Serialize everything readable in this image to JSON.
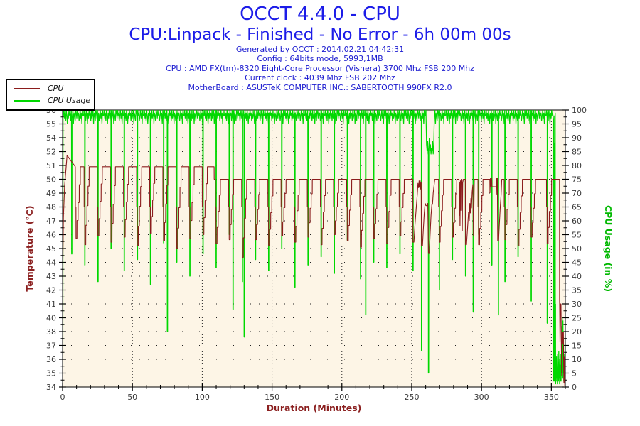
{
  "header": {
    "title": "OCCT 4.4.0 - CPU",
    "subtitle": "CPU:Linpack - Finished - No Error - 6h 00m 00s",
    "info_lines": [
      "Generated by OCCT : 2014.02.21 04:42:31",
      "Config : 64bits mode, 5993,1MB",
      "CPU : AMD FX(tm)-8320 Eight-Core Processor (Vishera) 3700 Mhz FSB 200 Mhz",
      "Current clock : 4039 Mhz FSB 202 Mhz",
      "MotherBoard : ASUSTeK COMPUTER INC.: SABERTOOTH 990FX R2.0"
    ]
  },
  "legend": {
    "items": [
      {
        "label": "CPU",
        "color": "#8b1c1c"
      },
      {
        "label": "CPU Usage",
        "color": "#00d800"
      }
    ]
  },
  "chart_data": {
    "type": "line",
    "title": "OCCT 4.4.0 - CPU",
    "plot_bg": "#fdf5e6",
    "x_axis": {
      "label": "Duration (Minutes)",
      "min": 0,
      "max": 360,
      "major_ticks": [
        0,
        50,
        100,
        150,
        200,
        250,
        300,
        350
      ],
      "minor_step": 10
    },
    "y_left": {
      "label": "Temperature (°C)",
      "min": 34,
      "max": 56,
      "color": "#8b2020",
      "tick_labels_top_to_bottom": [
        "56",
        "55",
        "54",
        "52",
        "51",
        "50",
        "49",
        "48",
        "47",
        "46",
        "45",
        "44",
        "43",
        "42",
        "41",
        "40",
        "38",
        "37",
        "36",
        "35",
        "34"
      ]
    },
    "y_right": {
      "label": "CPU Usage (in %)",
      "min": 0,
      "max": 100,
      "color": "#00b800",
      "tick_labels_top_to_bottom": [
        "100",
        "95",
        "90",
        "85",
        "80",
        "75",
        "70",
        "65",
        "60",
        "55",
        "50",
        "45",
        "40",
        "35",
        "30",
        "25",
        "20",
        "15",
        "10",
        "5",
        "0"
      ]
    },
    "grid": {
      "h_dash": "1 11",
      "v_dash": "1 3",
      "color": "#222222"
    },
    "temperature": {
      "name": "CPU",
      "color": "#8b1c1c",
      "unit": "°C",
      "start": [
        [
          0,
          36.2
        ],
        [
          0.1,
          43.0
        ],
        [
          0.6,
          47.5
        ],
        [
          1.5,
          50.0
        ],
        [
          2.5,
          51.4
        ],
        [
          3.2,
          52.4
        ]
      ],
      "baseline_segments": [
        [
          0,
          8.7,
          52.4
        ],
        [
          8.7,
          108.5,
          51.5
        ],
        [
          108.5,
          360,
          50.5
        ]
      ],
      "baseline_steps": [
        [
          108.5,
          51.5,
          50.5
        ]
      ],
      "predip_level": 48.3,
      "cycles": [
        [
          9.6,
          45.8
        ],
        [
          15.9,
          45.3
        ],
        [
          25.3,
          46.0
        ],
        [
          34.7,
          45.5
        ],
        [
          44.1,
          45.9
        ],
        [
          53.5,
          45.2
        ],
        [
          62.9,
          46.2
        ],
        [
          72.3,
          45.6
        ],
        [
          81.7,
          45.0
        ],
        [
          91.1,
          45.8
        ],
        [
          100.5,
          46.1
        ],
        [
          109.9,
          45.4
        ],
        [
          119.3,
          45.7
        ],
        [
          128.7,
          44.3
        ],
        [
          138.1,
          45.7
        ],
        [
          147.5,
          45.2
        ],
        [
          156.9,
          46.0
        ],
        [
          166.3,
          45.5
        ],
        [
          175.7,
          45.9
        ],
        [
          185.1,
          45.3
        ],
        [
          194.5,
          46.1
        ],
        [
          203.9,
          45.6
        ],
        [
          213.3,
          45.1
        ],
        [
          222.7,
          45.8
        ],
        [
          232.1,
          45.4
        ],
        [
          241.5,
          46.0
        ],
        [
          269.7,
          45.5
        ],
        [
          279.1,
          45.9
        ],
        [
          297.9,
          45.3
        ],
        [
          316.7,
          45.7
        ],
        [
          326.1,
          45.2
        ],
        [
          335.5,
          45.9
        ],
        [
          347.0,
          45.4
        ]
      ],
      "specials": [
        [
          [
            250.8,
            50.5
          ],
          [
            250.9,
            45.5
          ],
          [
            251.6,
            45.5
          ],
          [
            252.4,
            47.0
          ],
          [
            253.2,
            48.2
          ],
          [
            254.0,
            49.3
          ],
          [
            254.5,
            50.2
          ],
          [
            255.0,
            49.8
          ],
          [
            255.3,
            50.4
          ],
          [
            255.6,
            49.9
          ],
          [
            256.0,
            50.4
          ],
          [
            256.4,
            49.7
          ],
          [
            256.8,
            50.3
          ],
          [
            257.0,
            45.2
          ],
          [
            257.7,
            45.2
          ],
          [
            258.3,
            46.5
          ],
          [
            259.0,
            47.8
          ],
          [
            259.6,
            48.6
          ],
          [
            260.2,
            48.4
          ],
          [
            261.0,
            48.4
          ],
          [
            261.5,
            48.6
          ],
          [
            262.0,
            44.6
          ],
          [
            262.6,
            44.6
          ],
          [
            263.2,
            46.2
          ],
          [
            263.8,
            47.6
          ],
          [
            264.4,
            48.5
          ],
          [
            264.9,
            48.5
          ],
          [
            265.4,
            49.4
          ],
          [
            266.0,
            50.0
          ],
          [
            266.5,
            50.5
          ]
        ],
        [
          [
            283.9,
            50.5
          ],
          [
            284.1,
            47.6
          ],
          [
            284.3,
            50.3
          ],
          [
            284.6,
            46.8
          ],
          [
            284.9,
            50.4
          ],
          [
            285.2,
            48.0
          ],
          [
            285.4,
            50.5
          ],
          [
            286.0,
            50.5
          ],
          [
            286.2,
            46.4
          ],
          [
            286.5,
            50.2
          ],
          [
            287.0,
            50.5
          ],
          [
            288.4,
            50.5
          ],
          [
            288.5,
            45.3
          ],
          [
            289.2,
            45.3
          ],
          [
            290.0,
            46.6
          ],
          [
            290.7,
            47.9
          ],
          [
            291.2,
            47.2
          ],
          [
            291.6,
            48.6
          ],
          [
            292.0,
            47.8
          ],
          [
            292.4,
            49.0
          ],
          [
            292.8,
            48.2
          ],
          [
            293.3,
            49.5
          ],
          [
            293.8,
            50.1
          ],
          [
            294.2,
            46.0
          ],
          [
            294.5,
            48.0
          ],
          [
            294.8,
            50.5
          ]
        ],
        [
          [
            305.9,
            50.5
          ],
          [
            306.0,
            49.4
          ],
          [
            306.4,
            50.6
          ],
          [
            306.8,
            49.9
          ],
          [
            307.2,
            50.6
          ],
          [
            307.5,
            49.9
          ],
          [
            310.5,
            49.9
          ],
          [
            310.7,
            50.6
          ],
          [
            311.0,
            49.3
          ],
          [
            311.3,
            50.6
          ],
          [
            311.6,
            45.6
          ],
          [
            312.2,
            45.6
          ],
          [
            312.8,
            47.0
          ],
          [
            313.4,
            48.3
          ],
          [
            314.0,
            49.3
          ],
          [
            314.5,
            50.5
          ]
        ],
        [
          [
            355.8,
            50.5
          ],
          [
            355.9,
            41.0
          ],
          [
            356.2,
            37.6
          ],
          [
            356.5,
            40.6
          ],
          [
            356.9,
            40.6
          ],
          [
            357.1,
            37.8
          ],
          [
            357.4,
            34.9
          ],
          [
            357.7,
            38.4
          ],
          [
            357.85,
            37.4
          ],
          [
            358.0,
            38.4
          ],
          [
            358.15,
            37.4
          ],
          [
            358.3,
            38.4
          ],
          [
            358.45,
            37.4
          ],
          [
            358.6,
            38.4
          ],
          [
            358.8,
            36.0
          ],
          [
            359.0,
            34.3
          ],
          [
            359.3,
            36.4
          ],
          [
            359.6,
            34.1
          ],
          [
            359.9,
            35.2
          ],
          [
            360.0,
            34.1
          ]
        ]
      ]
    },
    "usage": {
      "name": "CPU Usage",
      "color": "#00d800",
      "unit": "%",
      "start": [
        [
          0,
          2
        ],
        [
          0.1,
          14
        ],
        [
          0.2,
          5
        ],
        [
          0.35,
          100
        ]
      ],
      "loop_start": 0.6,
      "loop_end": 351.4,
      "noise_step": 0.4,
      "noise_pattern": [
        2,
        0,
        3,
        1,
        4,
        0,
        2,
        5,
        1,
        3,
        0,
        2,
        1,
        4,
        0,
        3,
        2,
        0,
        5,
        1,
        2,
        4,
        0,
        1,
        3,
        0,
        2,
        1,
        4,
        2,
        0,
        3,
        1,
        5,
        0,
        2
      ],
      "fuzz": {
        "from": 260.6,
        "to": 266.2,
        "base": 84
      },
      "dips": [
        [
          6.5,
          48
        ],
        [
          15.9,
          44
        ],
        [
          25.3,
          38
        ],
        [
          34.7,
          50
        ],
        [
          44.1,
          42
        ],
        [
          53.5,
          46
        ],
        [
          62.9,
          37
        ],
        [
          72.3,
          52
        ],
        [
          75.0,
          20
        ],
        [
          81.7,
          45
        ],
        [
          91.1,
          40
        ],
        [
          100.5,
          48
        ],
        [
          109.9,
          43
        ],
        [
          119.3,
          55
        ],
        [
          122.0,
          28
        ],
        [
          128.7,
          38
        ],
        [
          130.0,
          18
        ],
        [
          138.1,
          46
        ],
        [
          147.5,
          42
        ],
        [
          156.9,
          50
        ],
        [
          166.3,
          36
        ],
        [
          175.7,
          44
        ],
        [
          185.1,
          47
        ],
        [
          194.5,
          41
        ],
        [
          203.9,
          53
        ],
        [
          213.3,
          39
        ],
        [
          217.0,
          26
        ],
        [
          222.7,
          45
        ],
        [
          232.1,
          43
        ],
        [
          241.5,
          48
        ],
        [
          250.9,
          42
        ],
        [
          257.0,
          13
        ],
        [
          262.0,
          5
        ],
        [
          269.7,
          35
        ],
        [
          279.1,
          46
        ],
        [
          288.5,
          40
        ],
        [
          294.0,
          27
        ],
        [
          297.9,
          55
        ],
        [
          307.3,
          44
        ],
        [
          312.0,
          26
        ],
        [
          316.7,
          38
        ],
        [
          326.1,
          47
        ],
        [
          335.5,
          31
        ],
        [
          347.0,
          23
        ]
      ],
      "end": [
        [
          351.5,
          97
        ],
        [
          351.55,
          2
        ],
        [
          351.7,
          60
        ],
        [
          351.8,
          3
        ],
        [
          351.95,
          98
        ],
        [
          352.05,
          2
        ],
        [
          352.2,
          40
        ],
        [
          352.3,
          2
        ],
        [
          352.5,
          88
        ],
        [
          352.6,
          3
        ],
        [
          352.75,
          99
        ],
        [
          352.85,
          2
        ],
        [
          353.0,
          30
        ],
        [
          353.1,
          1
        ],
        [
          353.3,
          8
        ],
        [
          353.5,
          2
        ],
        [
          353.7,
          11
        ],
        [
          353.9,
          3
        ],
        [
          354.1,
          7
        ],
        [
          354.3,
          1
        ],
        [
          354.5,
          12
        ],
        [
          354.7,
          4
        ],
        [
          354.9,
          9
        ],
        [
          355.1,
          2
        ],
        [
          355.3,
          13
        ],
        [
          355.5,
          3
        ],
        [
          355.7,
          7
        ],
        [
          355.9,
          1
        ],
        [
          356.1,
          10
        ],
        [
          356.3,
          4
        ],
        [
          356.5,
          8
        ],
        [
          356.7,
          2
        ],
        [
          356.9,
          12
        ],
        [
          357.1,
          5
        ],
        [
          357.3,
          9
        ],
        [
          357.5,
          2
        ],
        [
          357.6,
          22
        ],
        [
          357.7,
          4
        ],
        [
          357.8,
          25
        ],
        [
          357.9,
          6
        ],
        [
          358.0,
          20
        ],
        [
          358.1,
          3
        ],
        [
          358.3,
          24
        ],
        [
          358.5,
          5
        ],
        [
          358.7,
          18
        ],
        [
          358.9,
          2
        ],
        [
          359.1,
          12
        ],
        [
          359.3,
          3
        ],
        [
          359.5,
          8
        ],
        [
          359.7,
          1
        ],
        [
          360.0,
          2
        ]
      ]
    }
  }
}
